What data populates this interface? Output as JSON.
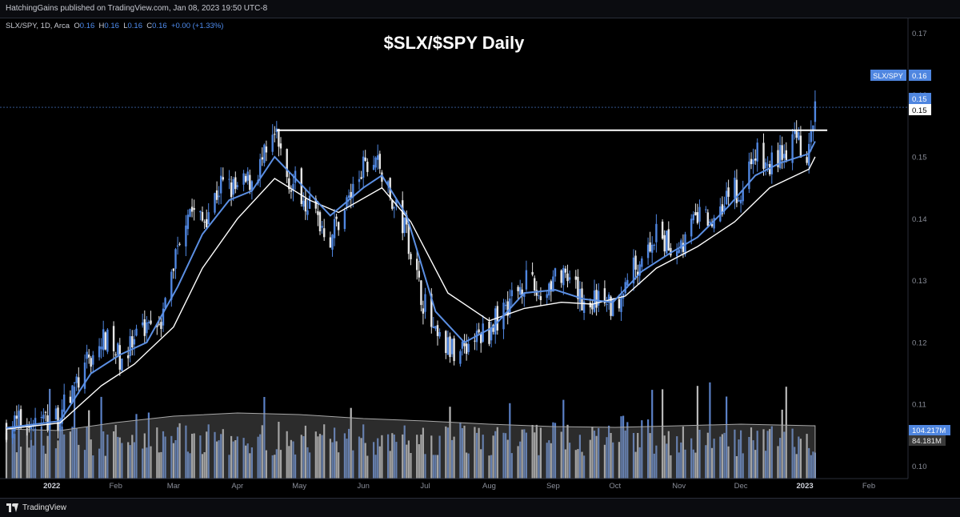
{
  "header": {
    "published": "HatchingGains published on TradingView.com, Jan 08, 2023 19:50 UTC-8"
  },
  "legend": {
    "symbol": "SLX/SPY, 1D, Arca",
    "o_label": "O",
    "o_value": "0.16",
    "h_label": "H",
    "h_value": "0.16",
    "l_label": "L",
    "l_value": "0.16",
    "c_label": "C",
    "c_value": "0.16",
    "change": "+0.00 (+1.33%)"
  },
  "footer": {
    "brand": "TradingView"
  },
  "colors": {
    "up": "#4f86e0",
    "down": "#e6e6e6",
    "ema_fast": "#5b8fe3",
    "ema_slow": "#ffffff",
    "vol_up": "#5a80c6",
    "vol_down": "#b8b8b8",
    "bg": "#000000"
  },
  "chart_data": {
    "type": "candlestick",
    "title": "$SLX/$SPY Daily",
    "y_ticks": [
      "0.10",
      "0.11",
      "0.12",
      "0.13",
      "0.14",
      "0.15",
      "0.16",
      "0.17"
    ],
    "ylim": [
      0.098,
      0.1725
    ],
    "x_ticks": [
      "2022",
      "Feb",
      "Mar",
      "Apr",
      "May",
      "Jun",
      "Jul",
      "Aug",
      "Sep",
      "Oct",
      "Nov",
      "Dec",
      "2023",
      "Feb"
    ],
    "x_range": [
      "2021-12-10",
      "2023-02-20"
    ],
    "labels": {
      "price_label": "SLX/SPY",
      "price_value": "0.16",
      "ema_fast_value": "0.15",
      "ema_slow_value": "0.15",
      "volume_value": "104.217M",
      "volume_ma_value": "84.181M"
    },
    "resistance": {
      "value": 0.1543,
      "from": "2022-04-20",
      "to": "2023-01-08"
    },
    "price_path": [
      [
        "2021-12-10",
        0.1065
      ],
      [
        "2021-12-20",
        0.1072
      ],
      [
        "2022-01-03",
        0.1075
      ],
      [
        "2022-01-10",
        0.1115
      ],
      [
        "2022-01-20",
        0.1175
      ],
      [
        "2022-01-27",
        0.1205
      ],
      [
        "2022-02-03",
        0.1175
      ],
      [
        "2022-02-10",
        0.1195
      ],
      [
        "2022-02-16",
        0.1235
      ],
      [
        "2022-02-24",
        0.1245
      ],
      [
        "2022-03-03",
        0.136
      ],
      [
        "2022-03-08",
        0.142
      ],
      [
        "2022-03-15",
        0.1395
      ],
      [
        "2022-03-24",
        0.1455
      ],
      [
        "2022-04-01",
        0.1445
      ],
      [
        "2022-04-08",
        0.1465
      ],
      [
        "2022-04-13",
        0.149
      ],
      [
        "2022-04-19",
        0.1535
      ],
      [
        "2022-04-25",
        0.147
      ],
      [
        "2022-05-02",
        0.1445
      ],
      [
        "2022-05-09",
        0.1405
      ],
      [
        "2022-05-16",
        0.137
      ],
      [
        "2022-05-23",
        0.142
      ],
      [
        "2022-06-01",
        0.148
      ],
      [
        "2022-06-08",
        0.1495
      ],
      [
        "2022-06-14",
        0.143
      ],
      [
        "2022-06-22",
        0.138
      ],
      [
        "2022-06-28",
        0.129
      ],
      [
        "2022-07-06",
        0.1205
      ],
      [
        "2022-07-14",
        0.1185
      ],
      [
        "2022-07-22",
        0.12
      ],
      [
        "2022-08-01",
        0.122
      ],
      [
        "2022-08-10",
        0.1265
      ],
      [
        "2022-08-18",
        0.13
      ],
      [
        "2022-08-26",
        0.1275
      ],
      [
        "2022-09-02",
        0.131
      ],
      [
        "2022-09-09",
        0.129
      ],
      [
        "2022-09-16",
        0.1265
      ],
      [
        "2022-09-23",
        0.127
      ],
      [
        "2022-09-30",
        0.1255
      ],
      [
        "2022-10-06",
        0.13
      ],
      [
        "2022-10-14",
        0.134
      ],
      [
        "2022-10-21",
        0.137
      ],
      [
        "2022-10-28",
        0.1355
      ],
      [
        "2022-11-04",
        0.1365
      ],
      [
        "2022-11-10",
        0.1405
      ],
      [
        "2022-11-17",
        0.1395
      ],
      [
        "2022-11-25",
        0.145
      ],
      [
        "2022-12-01",
        0.144
      ],
      [
        "2022-12-07",
        0.151
      ],
      [
        "2022-12-14",
        0.148
      ],
      [
        "2022-12-20",
        0.1505
      ],
      [
        "2022-12-27",
        0.1525
      ],
      [
        "2023-01-03",
        0.1505
      ],
      [
        "2023-01-06",
        0.158
      ]
    ],
    "ema_fast_path": [
      [
        "2021-12-10",
        0.1062
      ],
      [
        "2022-01-05",
        0.1073
      ],
      [
        "2022-01-20",
        0.115
      ],
      [
        "2022-02-03",
        0.118
      ],
      [
        "2022-02-16",
        0.12
      ],
      [
        "2022-03-03",
        0.129
      ],
      [
        "2022-03-15",
        0.1375
      ],
      [
        "2022-03-28",
        0.143
      ],
      [
        "2022-04-08",
        0.1445
      ],
      [
        "2022-04-19",
        0.15
      ],
      [
        "2022-05-02",
        0.1455
      ],
      [
        "2022-05-16",
        0.1405
      ],
      [
        "2022-06-01",
        0.145
      ],
      [
        "2022-06-10",
        0.147
      ],
      [
        "2022-06-22",
        0.1405
      ],
      [
        "2022-07-06",
        0.125
      ],
      [
        "2022-07-20",
        0.12
      ],
      [
        "2022-08-03",
        0.1225
      ],
      [
        "2022-08-18",
        0.128
      ],
      [
        "2022-09-02",
        0.1285
      ],
      [
        "2022-09-16",
        0.127
      ],
      [
        "2022-09-30",
        0.1265
      ],
      [
        "2022-10-14",
        0.1315
      ],
      [
        "2022-10-28",
        0.1345
      ],
      [
        "2022-11-10",
        0.137
      ],
      [
        "2022-11-25",
        0.142
      ],
      [
        "2022-12-08",
        0.147
      ],
      [
        "2022-12-20",
        0.149
      ],
      [
        "2023-01-03",
        0.1505
      ],
      [
        "2023-01-06",
        0.1525
      ]
    ],
    "ema_slow_path": [
      [
        "2021-12-10",
        0.106
      ],
      [
        "2022-01-05",
        0.107
      ],
      [
        "2022-01-25",
        0.113
      ],
      [
        "2022-02-10",
        0.1165
      ],
      [
        "2022-03-01",
        0.1225
      ],
      [
        "2022-03-15",
        0.132
      ],
      [
        "2022-04-01",
        0.14
      ],
      [
        "2022-04-19",
        0.1465
      ],
      [
        "2022-05-06",
        0.143
      ],
      [
        "2022-05-20",
        0.141
      ],
      [
        "2022-06-10",
        0.145
      ],
      [
        "2022-06-24",
        0.1395
      ],
      [
        "2022-07-12",
        0.128
      ],
      [
        "2022-08-01",
        0.1235
      ],
      [
        "2022-08-18",
        0.1255
      ],
      [
        "2022-09-05",
        0.1265
      ],
      [
        "2022-09-20",
        0.1262
      ],
      [
        "2022-10-06",
        0.1275
      ],
      [
        "2022-10-21",
        0.132
      ],
      [
        "2022-11-10",
        0.1355
      ],
      [
        "2022-11-28",
        0.1395
      ],
      [
        "2022-12-15",
        0.145
      ],
      [
        "2023-01-03",
        0.148
      ],
      [
        "2023-01-06",
        0.15
      ]
    ],
    "volume_ma_path": [
      [
        "2021-12-10",
        0.62
      ],
      [
        "2022-01-05",
        0.6
      ],
      [
        "2022-02-01",
        0.7
      ],
      [
        "2022-03-01",
        0.78
      ],
      [
        "2022-04-01",
        0.82
      ],
      [
        "2022-05-01",
        0.8
      ],
      [
        "2022-06-01",
        0.75
      ],
      [
        "2022-07-01",
        0.72
      ],
      [
        "2022-08-01",
        0.68
      ],
      [
        "2022-09-01",
        0.65
      ],
      [
        "2022-10-01",
        0.64
      ],
      [
        "2022-11-01",
        0.66
      ],
      [
        "2022-12-01",
        0.68
      ],
      [
        "2023-01-06",
        0.66
      ]
    ]
  }
}
